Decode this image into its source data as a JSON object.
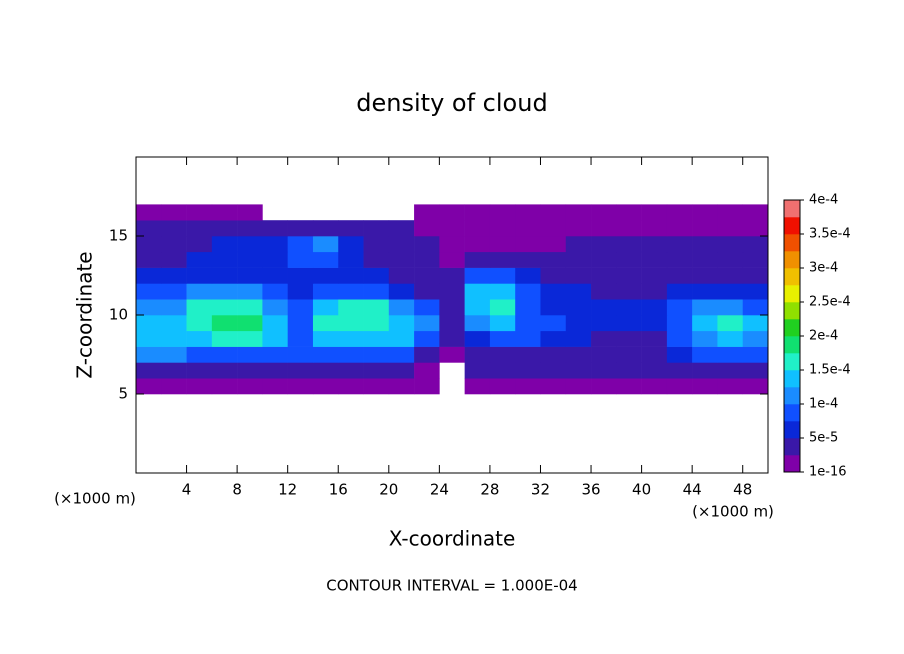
{
  "chart_data": {
    "type": "contour",
    "title": "density of cloud",
    "xlabel": "X-coordinate",
    "ylabel": "Z-coordinate",
    "x_unit": "(×1000 m)",
    "y_unit": "(×1000 m)",
    "note": "CONTOUR INTERVAL = 1.000E-04",
    "xlim": [
      0,
      50
    ],
    "xticks": [
      4,
      8,
      12,
      16,
      20,
      24,
      28,
      32,
      36,
      40,
      44,
      48
    ],
    "ylim": [
      0,
      20
    ],
    "yticks": [
      5,
      10,
      15
    ],
    "x": [
      1,
      3,
      5,
      7,
      9,
      11,
      13,
      15,
      17,
      19,
      21,
      23,
      25,
      27,
      29,
      31,
      33,
      35,
      37,
      39,
      41,
      43,
      45,
      47,
      49
    ],
    "cell_width": 2,
    "cell_height": 1,
    "z": [
      5.5,
      6.5,
      7.5,
      8.5,
      9.5,
      10.5,
      11.5,
      12.5,
      13.5,
      14.5,
      15.5,
      16.5
    ],
    "values": [
      [
        1e-05,
        1e-05,
        1e-05,
        1e-05,
        1e-05,
        1e-05,
        1e-05,
        1e-05,
        1e-05,
        1e-05,
        1e-05,
        1e-05,
        null,
        1e-05,
        1e-05,
        1e-05,
        1e-05,
        1e-05,
        1e-05,
        1e-05,
        1e-05,
        1e-05,
        1e-05,
        1e-05,
        1e-05
      ],
      [
        4e-05,
        4e-05,
        4e-05,
        4e-05,
        4e-05,
        3e-05,
        4e-05,
        5e-05,
        5e-05,
        5e-05,
        4e-05,
        2e-05,
        null,
        3e-05,
        3e-05,
        3e-05,
        3e-05,
        3e-05,
        3e-05,
        3e-05,
        3e-05,
        3e-05,
        4e-05,
        4e-05,
        3e-05
      ],
      [
        0.00011,
        0.00011,
        0.0001,
        0.0001,
        0.0001,
        9e-05,
        9e-05,
        0.0001,
        0.0001,
        0.0001,
        8e-05,
        5e-05,
        2e-05,
        5e-05,
        5e-05,
        5e-05,
        5e-05,
        5e-05,
        5e-05,
        5e-05,
        5e-05,
        6e-05,
        9e-05,
        0.0001,
        9e-05
      ],
      [
        0.00014,
        0.00014,
        0.00015,
        0.00016,
        0.00016,
        0.00013,
        9e-05,
        0.00014,
        0.00015,
        0.00015,
        0.00013,
        9e-05,
        3e-05,
        7e-05,
        8e-05,
        8e-05,
        6e-05,
        6e-05,
        5e-05,
        5e-05,
        5e-05,
        8e-05,
        0.00012,
        0.00013,
        0.00011
      ],
      [
        0.00015,
        0.00015,
        0.00017,
        0.00018,
        0.00018,
        0.00015,
        0.0001,
        0.00016,
        0.00017,
        0.00017,
        0.00015,
        0.00012,
        4e-05,
        0.00011,
        0.00013,
        9e-05,
        8e-05,
        7e-05,
        7e-05,
        6e-05,
        6e-05,
        0.0001,
        0.00015,
        0.00016,
        0.00013
      ],
      [
        0.00011,
        0.00011,
        0.00016,
        0.00017,
        0.00017,
        0.00012,
        8e-05,
        0.00015,
        0.00016,
        0.00016,
        0.00012,
        8e-05,
        4e-05,
        0.00014,
        0.00016,
        0.0001,
        7e-05,
        7e-05,
        6e-05,
        6e-05,
        6e-05,
        8e-05,
        0.00012,
        0.00012,
        9e-05
      ],
      [
        8e-05,
        8e-05,
        0.00011,
        0.00012,
        0.00011,
        8e-05,
        6e-05,
        8e-05,
        9e-05,
        9e-05,
        7e-05,
        5e-05,
        4e-05,
        0.00013,
        0.00015,
        8e-05,
        6e-05,
        6e-05,
        5e-05,
        5e-05,
        5e-05,
        6e-05,
        7e-05,
        7e-05,
        6e-05
      ],
      [
        6e-05,
        6e-05,
        7e-05,
        7e-05,
        7e-05,
        6e-05,
        6e-05,
        6e-05,
        6e-05,
        6e-05,
        5e-05,
        4e-05,
        3e-05,
        9e-05,
        0.0001,
        6e-05,
        5e-05,
        5e-05,
        4e-05,
        4e-05,
        4e-05,
        4e-05,
        5e-05,
        5e-05,
        5e-05
      ],
      [
        5e-05,
        5e-05,
        6e-05,
        6e-05,
        6e-05,
        7e-05,
        9e-05,
        9e-05,
        6e-05,
        5e-05,
        4e-05,
        3e-05,
        2e-05,
        4e-05,
        4e-05,
        3e-05,
        4e-05,
        4e-05,
        3e-05,
        3e-05,
        3e-05,
        3e-05,
        4e-05,
        4e-05,
        4e-05
      ],
      [
        4e-05,
        4e-05,
        5e-05,
        6e-05,
        6e-05,
        6e-05,
        8e-05,
        0.00011,
        6e-05,
        5e-05,
        4e-05,
        3e-05,
        1e-05,
        1e-05,
        2e-05,
        2e-05,
        2e-05,
        3e-05,
        3e-05,
        3e-05,
        3e-05,
        3e-05,
        3e-05,
        3e-05,
        3e-05
      ],
      [
        3e-05,
        3e-05,
        3e-05,
        4e-05,
        4e-05,
        4e-05,
        4e-05,
        4e-05,
        4e-05,
        3e-05,
        3e-05,
        2e-05,
        1e-05,
        1e-05,
        1e-05,
        1e-05,
        1e-05,
        2e-05,
        2e-05,
        2e-05,
        2e-05,
        2e-05,
        2e-05,
        2e-05,
        2e-05
      ],
      [
        1e-05,
        1e-05,
        1e-05,
        1e-05,
        1e-05,
        null,
        null,
        null,
        null,
        null,
        null,
        1e-05,
        1e-05,
        1e-05,
        1e-05,
        1e-05,
        1e-05,
        1e-05,
        1e-05,
        1e-05,
        1e-05,
        1e-05,
        1e-05,
        1e-05,
        1e-05
      ]
    ],
    "colorbar_lim": [
      1e-16,
      0.0004
    ],
    "colorbar_ticks": [
      {
        "value": 1e-16,
        "label": "1e-16"
      },
      {
        "value": 5e-05,
        "label": "5e-5"
      },
      {
        "value": 0.0001,
        "label": "1e-4"
      },
      {
        "value": 0.00015,
        "label": "1.5e-4"
      },
      {
        "value": 0.0002,
        "label": "2e-4"
      },
      {
        "value": 0.00025,
        "label": "2.5e-4"
      },
      {
        "value": 0.0003,
        "label": "3e-4"
      },
      {
        "value": 0.00035,
        "label": "3.5e-4"
      },
      {
        "value": 0.0004,
        "label": "4e-4"
      }
    ],
    "colors": [
      "#7f00a8",
      "#3a18a8",
      "#0a28d8",
      "#1050ff",
      "#1a8cff",
      "#10c0ff",
      "#20f0c8",
      "#10e070",
      "#20d020",
      "#90e000",
      "#e8f000",
      "#f0c000",
      "#f09000",
      "#f05000",
      "#f01000",
      "#f07070"
    ]
  }
}
